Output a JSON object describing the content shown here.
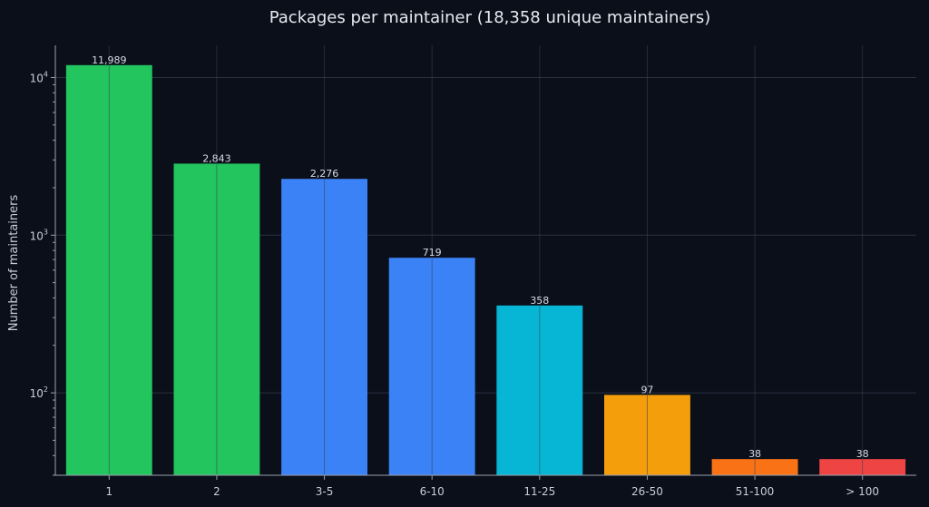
{
  "chart_data": {
    "type": "bar",
    "title": "Packages per maintainer (18,358 unique maintainers)",
    "xlabel": "",
    "ylabel": "Number of maintainers",
    "yscale": "log",
    "ylim": [
      30,
      16000
    ],
    "yticks": [
      {
        "value": 100,
        "base": "10",
        "exp": "2"
      },
      {
        "value": 1000,
        "base": "10",
        "exp": "3"
      },
      {
        "value": 10000,
        "base": "10",
        "exp": "4"
      }
    ],
    "categories": [
      "1",
      "2",
      "3-5",
      "6-10",
      "11-25",
      "26-50",
      "51-100",
      "> 100"
    ],
    "values": [
      11989,
      2843,
      2276,
      719,
      358,
      97,
      38,
      38
    ],
    "value_labels": [
      "11,989",
      "2,843",
      "2,276",
      "719",
      "358",
      "97",
      "38",
      "38"
    ],
    "colors": [
      "#22c55e",
      "#22c55e",
      "#3b82f6",
      "#3b82f6",
      "#06b6d4",
      "#f59e0b",
      "#f97316",
      "#ef4444"
    ],
    "grid": true,
    "background": "#0b0f1a"
  }
}
